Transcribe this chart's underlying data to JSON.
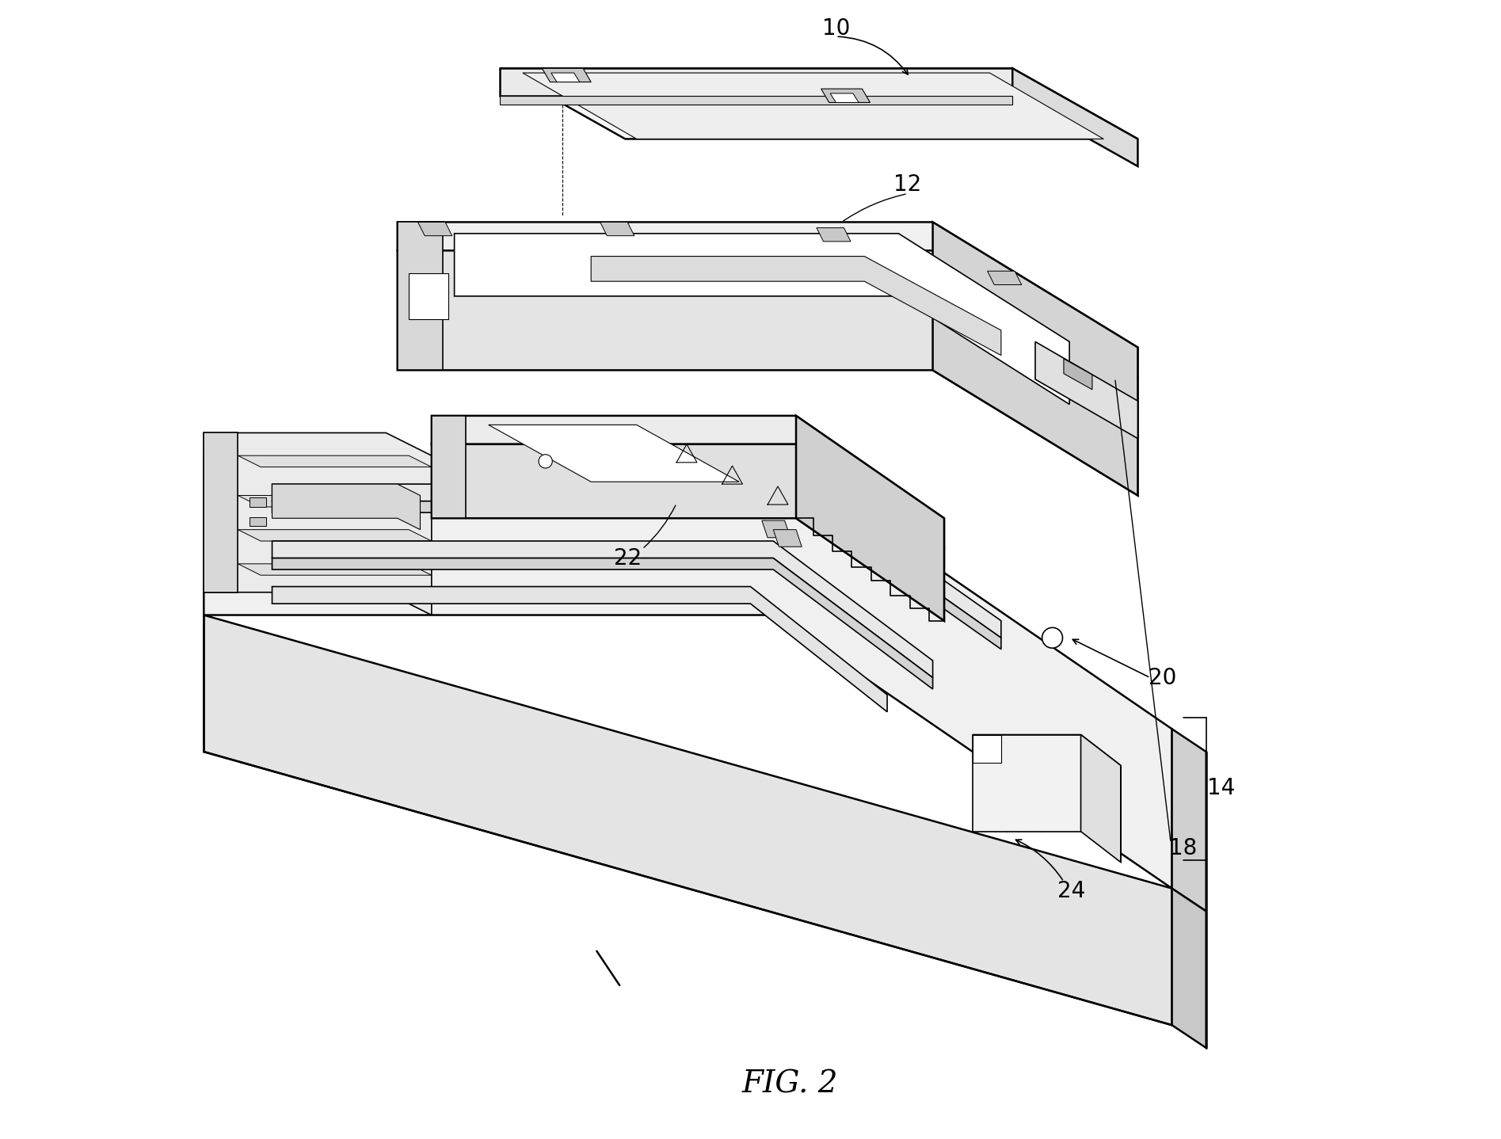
{
  "fig_label": "FIG. 2",
  "fig_label_fontsize": 28,
  "background_color": "#ffffff",
  "line_color": "#000000",
  "line_width": 1.2,
  "label_fontsize": 20
}
